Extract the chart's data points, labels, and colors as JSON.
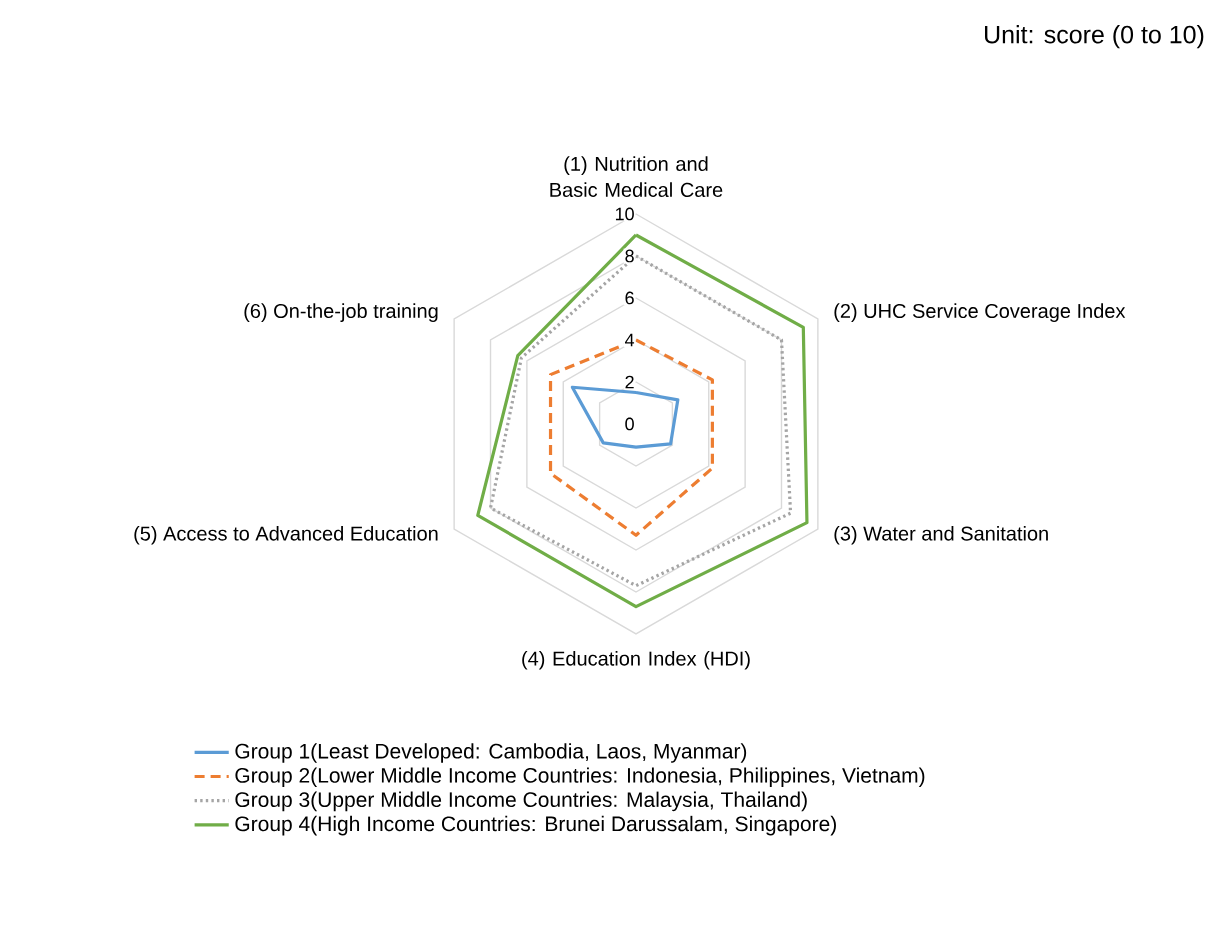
{
  "chart_data": {
    "type": "radar",
    "annotations": [
      "Unit: score (0 to 10)"
    ],
    "categories": [
      "(1) Nutrition and Basic Medical Care",
      "(2) UHC Service Coverage Index",
      "(3) Water and Sanitation",
      "(4) Education Index (HDI)",
      "(5) Access to Advanced Education",
      "(6) On-the-job training"
    ],
    "ylim": [
      0,
      10
    ],
    "yticks": [
      0,
      2,
      4,
      6,
      8,
      10
    ],
    "grid": true,
    "legend": "bottom",
    "series": [
      {
        "name": "Group 1(Least Developed: Cambodia, Laos, Myanmar)",
        "color": "#5b9bd5",
        "line_style": "solid",
        "values": [
          1.5,
          2.3,
          1.9,
          1.1,
          1.8,
          3.5
        ]
      },
      {
        "name": "Group 2(Lower Middle Income Countries: Indonesia, Philippines, Vietnam)",
        "color": "#ed7d31",
        "line_style": "dashed",
        "values": [
          4.0,
          4.2,
          4.2,
          5.3,
          4.7,
          4.7
        ]
      },
      {
        "name": "Group 3(Upper Middle Income Countries: Malaysia, Thailand)",
        "color": "#a5a5a5",
        "line_style": "dotted",
        "values": [
          8.0,
          8.0,
          8.5,
          7.7,
          8.0,
          6.3
        ]
      },
      {
        "name": "Group 4(High Income Countries: Brunei Darussalam, Singapore)",
        "color": "#70ad47",
        "line_style": "solid",
        "values": [
          9.0,
          9.2,
          9.4,
          8.7,
          8.7,
          6.5
        ]
      }
    ]
  }
}
